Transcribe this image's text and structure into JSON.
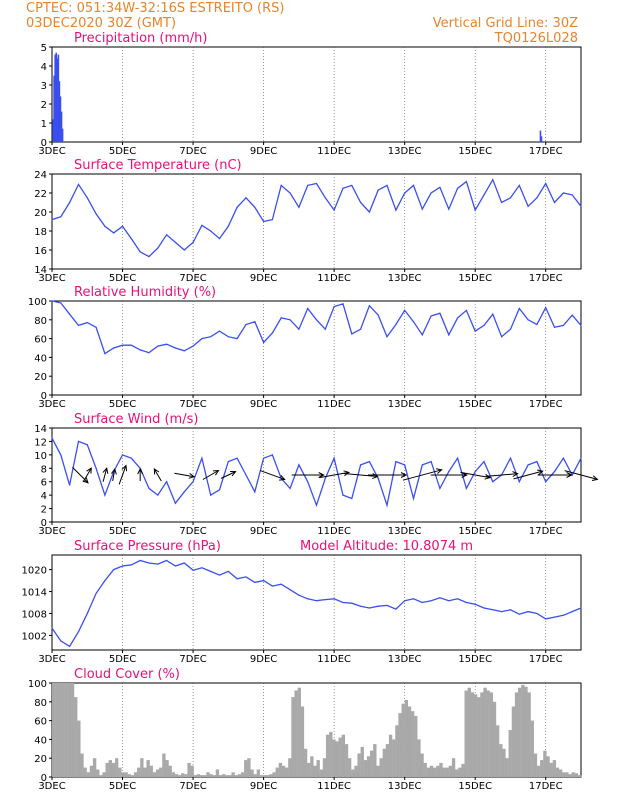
{
  "header": {
    "line1": "CPTEC:   051:34W-32:16S   ESTREITO (RS)",
    "line2": "03DEC2020 30Z (GMT)",
    "grid_note": "Vertical Grid Line: 30Z",
    "code": "TQ0126L028"
  },
  "colors": {
    "header": "#e8842a",
    "title": "#e8107a",
    "series": "#3a4ff0",
    "cloud": "#a9a9a9",
    "arrow": "#000000"
  },
  "x_ticks": [
    "3DEC",
    "5DEC",
    "7DEC",
    "9DEC",
    "11DEC",
    "13DEC",
    "15DEC",
    "17DEC"
  ],
  "x_range_days": [
    0,
    15
  ],
  "chart_data": [
    {
      "type": "bar",
      "title": "Precipitation (mm/h)",
      "ylim": [
        0,
        5
      ],
      "yticks": [
        0,
        1,
        2,
        3,
        4,
        5
      ],
      "x_days": [
        0.03,
        0.06,
        0.09,
        0.12,
        0.15,
        0.18,
        0.21,
        0.24,
        0.27,
        0.3,
        13.85,
        13.88
      ],
      "values": [
        1.2,
        3.5,
        4.6,
        4.7,
        4.4,
        4.6,
        3.2,
        2.4,
        1.6,
        0.7,
        0.6,
        0.3
      ]
    },
    {
      "type": "line",
      "title": "Surface Temperature (nC)",
      "ylim": [
        14,
        24
      ],
      "yticks": [
        14,
        16,
        18,
        20,
        22,
        24
      ],
      "x_days": [
        0,
        0.25,
        0.5,
        0.75,
        1,
        1.25,
        1.5,
        1.75,
        2,
        2.25,
        2.5,
        2.75,
        3,
        3.25,
        3.5,
        3.75,
        4,
        4.25,
        4.5,
        4.75,
        5,
        5.25,
        5.5,
        5.75,
        6,
        6.25,
        6.5,
        6.75,
        7,
        7.25,
        7.5,
        7.75,
        8,
        8.25,
        8.5,
        8.75,
        9,
        9.25,
        9.5,
        9.75,
        10,
        10.25,
        10.5,
        10.75,
        11,
        11.25,
        11.5,
        11.75,
        12,
        12.25,
        12.5,
        12.75,
        13,
        13.25,
        13.5,
        13.75,
        14,
        14.25,
        14.5,
        14.75,
        15
      ],
      "values": [
        19.2,
        19.5,
        21.0,
        22.9,
        21.5,
        19.8,
        18.5,
        17.8,
        18.5,
        17.2,
        15.8,
        15.3,
        16.2,
        17.6,
        16.8,
        16.0,
        16.8,
        18.6,
        18.0,
        17.2,
        18.5,
        20.5,
        21.5,
        20.5,
        19.0,
        19.2,
        22.8,
        22.0,
        20.5,
        22.8,
        23.0,
        21.5,
        20.2,
        22.5,
        22.8,
        21.0,
        20.0,
        22.3,
        22.8,
        20.2,
        22.0,
        22.8,
        20.3,
        22.0,
        22.6,
        20.3,
        22.5,
        23.2,
        20.2,
        21.8,
        23.4,
        21.0,
        21.5,
        22.8,
        20.6,
        21.5,
        23.0,
        21.0,
        22.0,
        21.8,
        20.6
      ]
    },
    {
      "type": "line",
      "title": "Relative Humidity (%)",
      "ylim": [
        0,
        100
      ],
      "yticks": [
        0,
        20,
        40,
        60,
        80,
        100
      ],
      "x_days": [
        0,
        0.25,
        0.5,
        0.75,
        1,
        1.25,
        1.5,
        1.75,
        2,
        2.25,
        2.5,
        2.75,
        3,
        3.25,
        3.5,
        3.75,
        4,
        4.25,
        4.5,
        4.75,
        5,
        5.25,
        5.5,
        5.75,
        6,
        6.25,
        6.5,
        6.75,
        7,
        7.25,
        7.5,
        7.75,
        8,
        8.25,
        8.5,
        8.75,
        9,
        9.25,
        9.5,
        9.75,
        10,
        10.25,
        10.5,
        10.75,
        11,
        11.25,
        11.5,
        11.75,
        12,
        12.25,
        12.5,
        12.75,
        13,
        13.25,
        13.5,
        13.75,
        14,
        14.25,
        14.5,
        14.75,
        15
      ],
      "values": [
        100,
        98,
        86,
        74,
        77,
        72,
        44,
        50,
        53,
        53,
        48,
        45,
        52,
        54,
        50,
        47,
        52,
        60,
        62,
        68,
        62,
        60,
        75,
        78,
        56,
        66,
        82,
        80,
        70,
        92,
        80,
        70,
        94,
        97,
        65,
        70,
        95,
        85,
        62,
        75,
        90,
        78,
        64,
        84,
        87,
        64,
        82,
        90,
        68,
        74,
        86,
        62,
        70,
        92,
        80,
        75,
        93,
        72,
        74,
        85,
        74
      ]
    },
    {
      "type": "line",
      "title": "Surface Wind (m/s)",
      "ylim": [
        0,
        14
      ],
      "yticks": [
        0,
        2,
        4,
        6,
        8,
        10,
        12,
        14
      ],
      "x_days": [
        0,
        0.25,
        0.5,
        0.75,
        1,
        1.25,
        1.5,
        1.75,
        2,
        2.25,
        2.5,
        2.75,
        3,
        3.25,
        3.5,
        3.75,
        4,
        4.25,
        4.5,
        4.75,
        5,
        5.25,
        5.5,
        5.75,
        6,
        6.25,
        6.5,
        6.75,
        7,
        7.25,
        7.5,
        7.75,
        8,
        8.25,
        8.5,
        8.75,
        9,
        9.25,
        9.5,
        9.75,
        10,
        10.25,
        10.5,
        10.75,
        11,
        11.25,
        11.5,
        11.75,
        12,
        12.25,
        12.5,
        12.75,
        13,
        13.25,
        13.5,
        13.75,
        14,
        14.25,
        14.5,
        14.75,
        15
      ],
      "values": [
        12.5,
        10.0,
        5.5,
        12.0,
        11.5,
        8.0,
        4.0,
        7.5,
        10.0,
        9.5,
        8.0,
        5.0,
        4.0,
        6.0,
        2.8,
        4.5,
        6.0,
        9.5,
        4.0,
        4.8,
        9.0,
        9.5,
        7.0,
        4.5,
        9.5,
        10.0,
        6.5,
        5.0,
        8.5,
        6.0,
        2.5,
        6.5,
        9.5,
        4.0,
        3.5,
        8.5,
        9.0,
        6.5,
        2.5,
        9.0,
        8.5,
        3.5,
        8.5,
        9.0,
        5.0,
        7.5,
        9.5,
        5.0,
        7.5,
        9.0,
        6.0,
        7.0,
        9.5,
        6.0,
        8.5,
        9.0,
        6.0,
        7.5,
        9.5,
        7.0,
        9.5
      ],
      "vectors": {
        "x_days": [
          0.8,
          1.0,
          1.5,
          1.75,
          2.0,
          2.5,
          3.0,
          3.75,
          4.5,
          5.0,
          6.25,
          7.25,
          8.0,
          8.75,
          9.5,
          10.5,
          11.25,
          12.0,
          12.75,
          13.5,
          14.25,
          15.0
        ],
        "dir_deg": [
          315,
          60,
          75,
          80,
          70,
          90,
          120,
          350,
          30,
          25,
          340,
          0,
          10,
          355,
          0,
          15,
          0,
          350,
          5,
          15,
          0,
          345
        ],
        "length": [
          22,
          16,
          14,
          12,
          20,
          12,
          14,
          20,
          18,
          16,
          26,
          32,
          30,
          34,
          38,
          40,
          36,
          30,
          32,
          30,
          34,
          34
        ]
      }
    },
    {
      "type": "line",
      "title": "Surface Pressure (hPa)",
      "ylim": [
        998,
        1024
      ],
      "yticks": [
        1002,
        1008,
        1014,
        1020
      ],
      "annotation": "Model Altitude: 10.8074 m",
      "x_days": [
        0,
        0.25,
        0.5,
        0.75,
        1,
        1.25,
        1.5,
        1.75,
        2,
        2.25,
        2.5,
        2.75,
        3,
        3.25,
        3.5,
        3.75,
        4,
        4.25,
        4.5,
        4.75,
        5,
        5.25,
        5.5,
        5.75,
        6,
        6.25,
        6.5,
        6.75,
        7,
        7.25,
        7.5,
        7.75,
        8,
        8.25,
        8.5,
        8.75,
        9,
        9.25,
        9.5,
        9.75,
        10,
        10.25,
        10.5,
        10.75,
        11,
        11.25,
        11.5,
        11.75,
        12,
        12.25,
        12.5,
        12.75,
        13,
        13.25,
        13.5,
        13.75,
        14,
        14.25,
        14.5,
        14.75,
        15
      ],
      "values": [
        1004.0,
        1000.5,
        999.0,
        1003.0,
        1008.0,
        1013.5,
        1017.0,
        1020.0,
        1021.0,
        1021.3,
        1022.5,
        1021.8,
        1021.5,
        1022.5,
        1021.0,
        1021.8,
        1019.8,
        1020.5,
        1019.5,
        1018.5,
        1019.5,
        1017.5,
        1018.0,
        1016.5,
        1017.0,
        1015.5,
        1016.0,
        1014.5,
        1013.0,
        1012.0,
        1011.5,
        1011.8,
        1012.0,
        1011.0,
        1010.8,
        1010.0,
        1009.5,
        1010.0,
        1010.2,
        1009.2,
        1011.5,
        1012.0,
        1011.0,
        1011.5,
        1012.3,
        1011.5,
        1012.0,
        1011.0,
        1010.5,
        1009.5,
        1009.0,
        1008.5,
        1009.0,
        1007.8,
        1008.5,
        1008.0,
        1006.5,
        1007.0,
        1007.5,
        1008.5,
        1009.5
      ]
    },
    {
      "type": "bar",
      "title": "Cloud Cover (%)",
      "ylim": [
        0,
        100
      ],
      "yticks": [
        0,
        20,
        40,
        60,
        80,
        100
      ],
      "bins_per_day": 12,
      "values": [
        100,
        100,
        100,
        100,
        100,
        100,
        100,
        85,
        60,
        25,
        10,
        5,
        12,
        20,
        8,
        2,
        5,
        15,
        18,
        15,
        20,
        10,
        5,
        5,
        3,
        2,
        5,
        10,
        20,
        10,
        18,
        12,
        5,
        8,
        10,
        25,
        18,
        12,
        5,
        3,
        2,
        4,
        3,
        15,
        12,
        2,
        3,
        2,
        2,
        5,
        3,
        2,
        8,
        2,
        3,
        2,
        2,
        5,
        2,
        3,
        5,
        18,
        20,
        8,
        3,
        8,
        2,
        2,
        2,
        3,
        5,
        10,
        15,
        12,
        10,
        20,
        85,
        92,
        95,
        75,
        30,
        15,
        22,
        12,
        18,
        8,
        20,
        45,
        48,
        40,
        38,
        42,
        45,
        35,
        20,
        8,
        12,
        25,
        32,
        18,
        22,
        28,
        35,
        12,
        20,
        30,
        35,
        45,
        40,
        55,
        68,
        78,
        82,
        75,
        70,
        65,
        40,
        25,
        15,
        10,
        12,
        10,
        12,
        15,
        10,
        10,
        12,
        20,
        8,
        10,
        14,
        92,
        95,
        90,
        88,
        85,
        90,
        95,
        92,
        90,
        80,
        55,
        35,
        30,
        20,
        50,
        75,
        90,
        95,
        98,
        96,
        90,
        60,
        25,
        12,
        18,
        28,
        22,
        15,
        18,
        10,
        8,
        5,
        5,
        3,
        5,
        4,
        2
      ]
    }
  ]
}
